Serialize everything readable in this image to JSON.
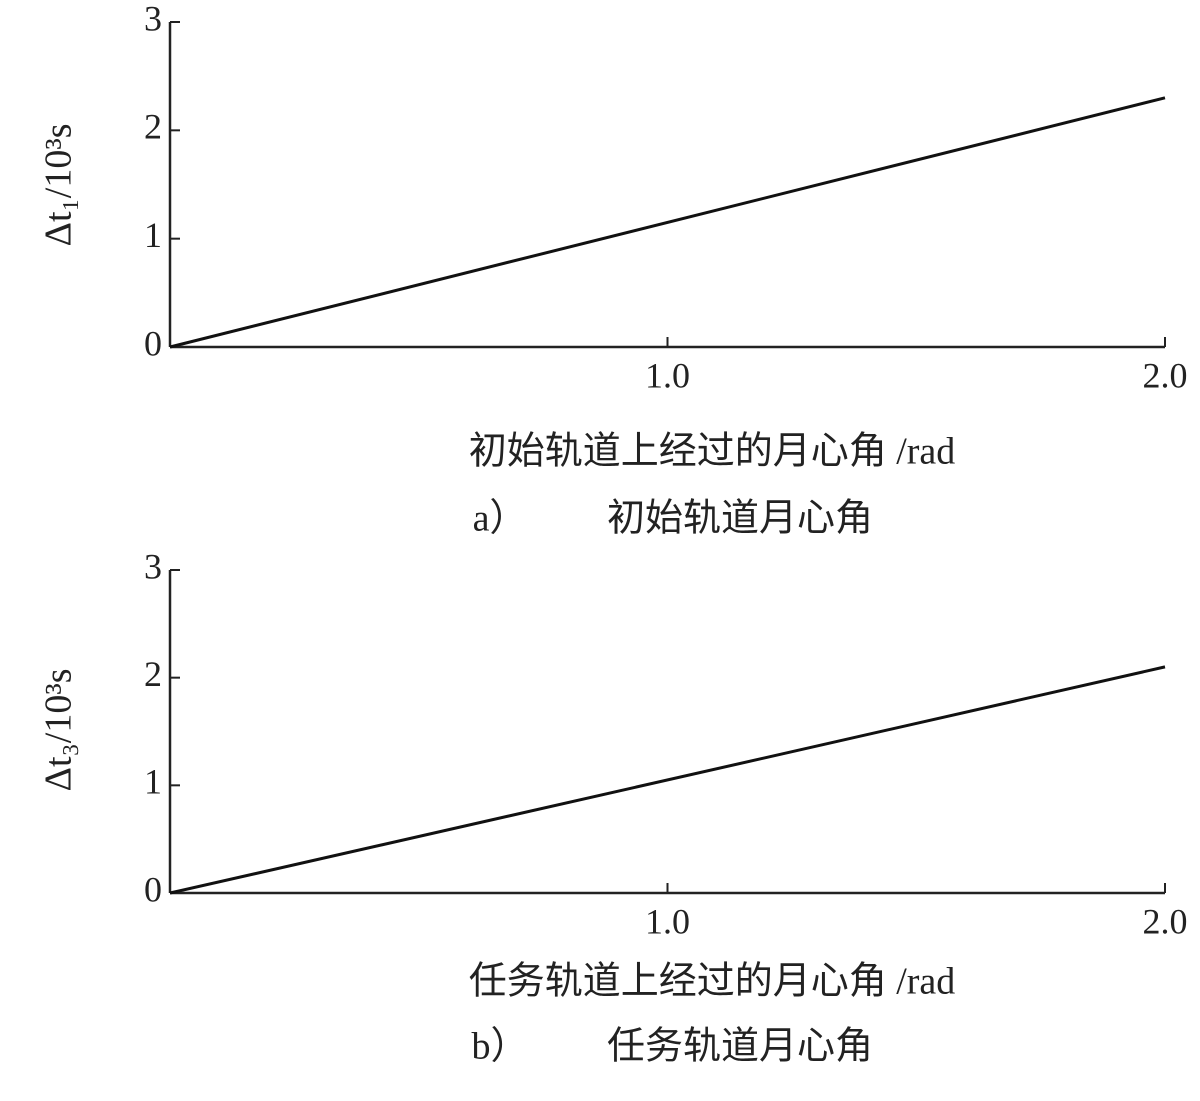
{
  "chart_data": [
    {
      "type": "line",
      "ylabel": "Δt₁/10³s",
      "xlabel": "初始轨道上经过的月心角 /rad",
      "caption_label": "a）",
      "caption": "初始轨道月心角",
      "x": [
        0,
        2.0
      ],
      "values": [
        0,
        2.3
      ],
      "color": "#111111",
      "xlim": [
        0,
        2.0
      ],
      "xticks": [
        {
          "value": 1,
          "label": "1.0"
        },
        {
          "value": 2,
          "label": "2.0"
        }
      ],
      "ylim": [
        0,
        3
      ],
      "yticks": [
        0,
        1,
        2,
        3
      ]
    },
    {
      "type": "line",
      "ylabel": "Δt₃/10³s",
      "xlabel": "任务轨道上经过的月心角 /rad",
      "caption_label": "b）",
      "caption": "任务轨道月心角",
      "x": [
        0,
        2.0
      ],
      "values": [
        0,
        2.1
      ],
      "color": "#111111",
      "xlim": [
        0,
        2.0
      ],
      "xticks": [
        {
          "value": 1,
          "label": "1.0"
        },
        {
          "value": 2,
          "label": "2.0"
        }
      ],
      "ylim": [
        0,
        3
      ],
      "yticks": [
        0,
        1,
        2,
        3
      ]
    }
  ]
}
